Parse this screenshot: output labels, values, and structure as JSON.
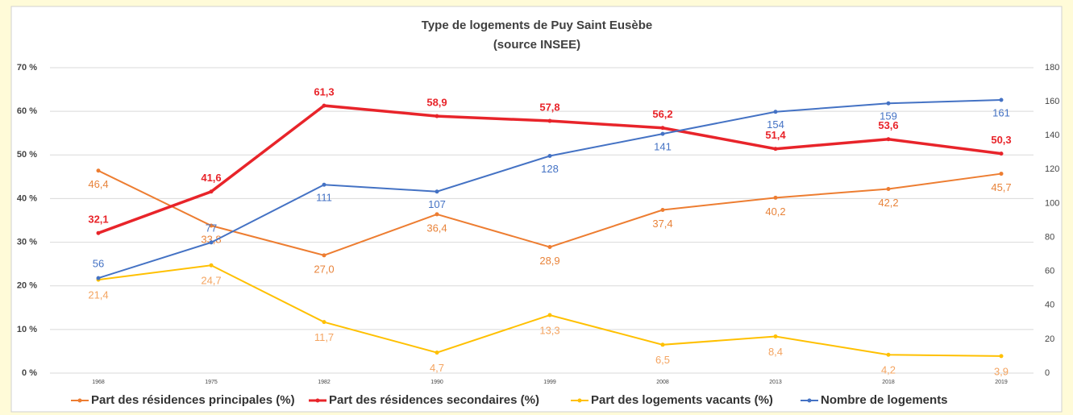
{
  "chart_data": {
    "type": "line",
    "title": "Type de logements de Puy Saint Eusèbe",
    "subtitle": "(source INSEE)",
    "categories": [
      "1968",
      "1975",
      "1982",
      "1990",
      "1999",
      "2008",
      "2013",
      "2018",
      "2019"
    ],
    "series": [
      {
        "name": "Part des résidences principales (%)",
        "color": "#ed7d31",
        "label_color": "#e8833a",
        "values": [
          46.4,
          33.8,
          27.0,
          36.4,
          28.9,
          37.4,
          40.2,
          42.2,
          45.7
        ],
        "value_labels": [
          "46,4",
          "33,8",
          "27,0",
          "36,4",
          "28,9",
          "37,4",
          "40,2",
          "42,2",
          "45,7"
        ]
      },
      {
        "name": "Part des résidences secondaires (%)",
        "color": "#e8242a",
        "label_color": "#e8242a",
        "values": [
          32.1,
          41.6,
          61.3,
          58.9,
          57.8,
          56.2,
          51.4,
          53.6,
          50.3
        ],
        "value_labels": [
          "32,1",
          "41,6",
          "61,3",
          "58,9",
          "57,8",
          "56,2",
          "51,4",
          "53,6",
          "50,3"
        ]
      },
      {
        "name": "Part des logements vacants (%)",
        "color": "#ffc000",
        "label_color": "#f4a460",
        "values": [
          21.4,
          24.7,
          11.7,
          4.7,
          13.3,
          6.5,
          8.4,
          4.2,
          3.9
        ],
        "value_labels": [
          "21,4",
          "24,7",
          "11,7",
          "4,7",
          "13,3",
          "6,5",
          "8,4",
          "4,2",
          "3,9"
        ]
      },
      {
        "name": "Nombre de logements",
        "color": "#4472c4",
        "label_color": "#4472c4",
        "axis": "y2",
        "values": [
          56,
          77,
          111,
          107,
          128,
          141,
          154,
          159,
          161
        ]
      }
    ],
    "ylim": [
      0,
      70
    ],
    "yticks": [
      {
        "value": 0,
        "label": "0 %"
      },
      {
        "value": 10,
        "label": "10 %"
      },
      {
        "value": 20,
        "label": "20 %"
      },
      {
        "value": 30,
        "label": "30 %"
      },
      {
        "value": 40,
        "label": "40 %"
      },
      {
        "value": 50,
        "label": "50 %"
      },
      {
        "value": 60,
        "label": "60 %"
      },
      {
        "value": 70,
        "label": "70 %"
      }
    ],
    "y2lim": [
      0,
      180
    ],
    "y2ticks": [
      0,
      20,
      40,
      60,
      80,
      100,
      120,
      140,
      160,
      180
    ],
    "grid": true,
    "legend": "bottom"
  }
}
